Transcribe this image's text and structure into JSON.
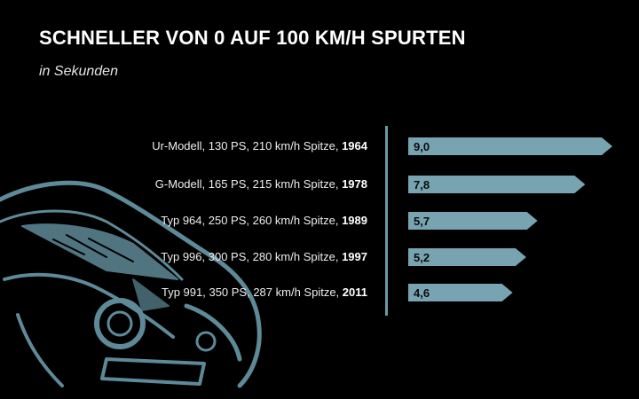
{
  "header": {
    "title": "SCHNELLER VON 0 AUF 100 KM/H SPURTEN",
    "subtitle": "in Sekunden"
  },
  "colors": {
    "bar": "#78a4b2",
    "axis": "#6e9aa6",
    "background": "#000000",
    "car_illustration": "#5e8a98"
  },
  "chart_data": {
    "type": "bar",
    "orientation": "horizontal",
    "title": "SCHNELLER VON 0 AUF 100 KM/H SPURTEN",
    "subtitle": "in Sekunden",
    "categories": [
      {
        "text": "Ur-Modell, 130 PS, 210 km/h Spitze,",
        "year": "1964"
      },
      {
        "text": "G-Modell, 165 PS, 215 km/h Spitze,",
        "year": "1978"
      },
      {
        "text": "Typ 964, 250 PS, 260 km/h Spitze,",
        "year": "1989"
      },
      {
        "text": "Typ 996, 300 PS, 280 km/h Spitze,",
        "year": "1997"
      },
      {
        "text": "Typ 991, 350 PS, 287 km/h Spitze,",
        "year": "2011"
      }
    ],
    "values": [
      9.0,
      7.8,
      5.7,
      5.2,
      4.6
    ],
    "value_labels": [
      "9,0",
      "7,8",
      "5,7",
      "5,2",
      "4,6"
    ],
    "xlim": [
      0,
      9.0
    ],
    "grid": false,
    "legend": "none"
  }
}
